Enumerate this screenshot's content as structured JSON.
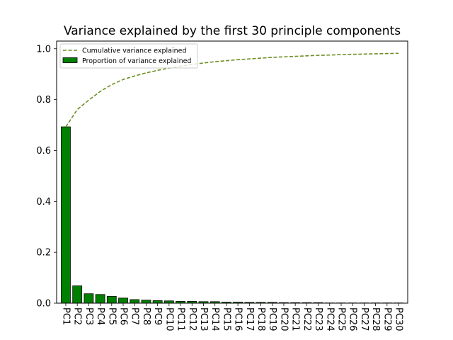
{
  "chart_data": {
    "type": "bar",
    "title": "Variance explained by the first 30 principle components",
    "xlabel": "",
    "ylabel": "",
    "ylim": [
      0,
      1.03
    ],
    "yticks": [
      "0.0",
      "0.2",
      "0.4",
      "0.6",
      "0.8",
      "1.0"
    ],
    "ytick_values": [
      0,
      0.2,
      0.4,
      0.6,
      0.8,
      1.0
    ],
    "grid": false,
    "legend_position": "top-left",
    "categories": [
      "PC1",
      "PC2",
      "PC3",
      "PC4",
      "PC5",
      "PC6",
      "PC7",
      "PC8",
      "PC9",
      "PC10",
      "PC11",
      "PC12",
      "PC13",
      "PC14",
      "PC15",
      "PC16",
      "PC17",
      "PC18",
      "PC19",
      "PC20",
      "PC21",
      "PC22",
      "PC23",
      "PC24",
      "PC25",
      "PC26",
      "PC27",
      "PC28",
      "PC29",
      "PC30"
    ],
    "series": [
      {
        "name": "Cumulative variance explained",
        "type": "line",
        "style": "dashed",
        "color": "#6b8e23",
        "values": [
          0.693,
          0.761,
          0.798,
          0.832,
          0.859,
          0.879,
          0.893,
          0.905,
          0.915,
          0.924,
          0.931,
          0.938,
          0.944,
          0.949,
          0.953,
          0.957,
          0.96,
          0.963,
          0.966,
          0.968,
          0.97,
          0.972,
          0.974,
          0.975,
          0.977,
          0.978,
          0.979,
          0.98,
          0.981,
          0.982
        ]
      },
      {
        "name": "Proportion of variance explained",
        "type": "bar",
        "color": "#008000",
        "edge_color": "#000000",
        "values": [
          0.693,
          0.068,
          0.037,
          0.034,
          0.027,
          0.02,
          0.014,
          0.012,
          0.01,
          0.009,
          0.007,
          0.007,
          0.006,
          0.006,
          0.004,
          0.004,
          0.003,
          0.003,
          0.003,
          0.002,
          0.002,
          0.002,
          0.002,
          0.001,
          0.001,
          0.001,
          0.001,
          0.001,
          0.001,
          0.001
        ]
      }
    ]
  }
}
